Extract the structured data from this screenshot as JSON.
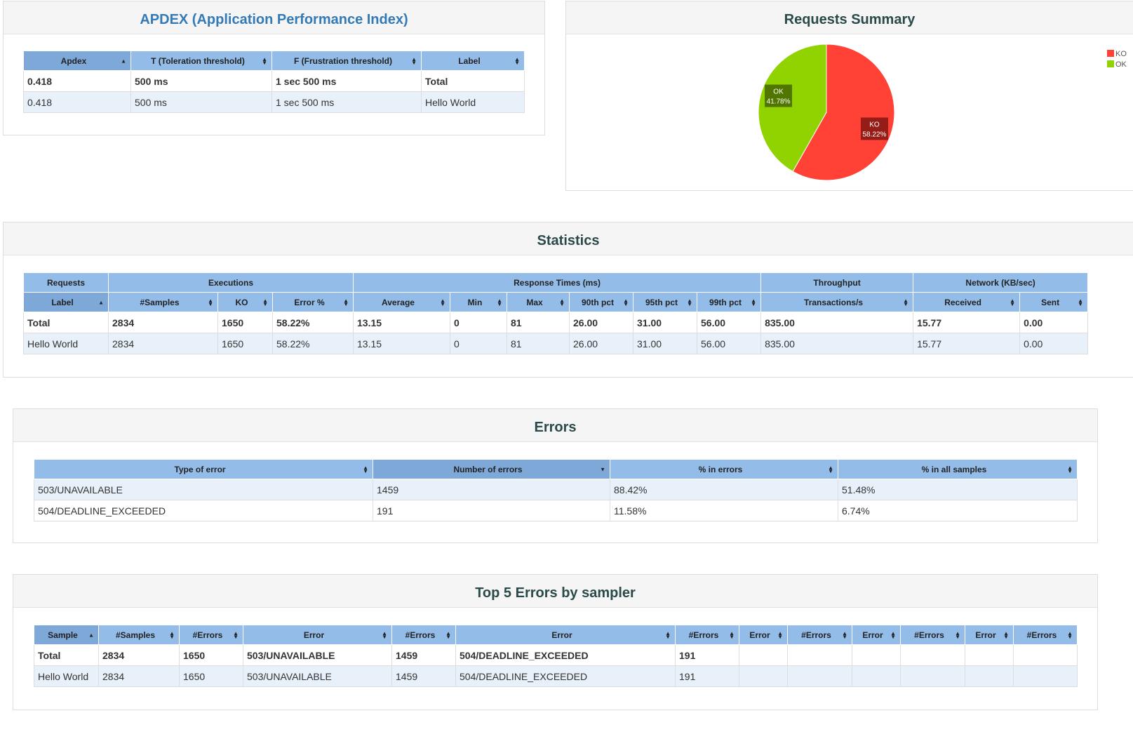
{
  "apdex": {
    "title": "APDEX (Application Performance Index)",
    "headers": [
      "Apdex",
      "T (Toleration threshold)",
      "F (Frustration threshold)",
      "Label"
    ],
    "total": [
      "0.418",
      "500 ms",
      "1 sec 500 ms",
      "Total"
    ],
    "rows": [
      [
        "0.418",
        "500 ms",
        "1 sec 500 ms",
        "Hello World"
      ]
    ]
  },
  "summary": {
    "title": "Requests Summary",
    "legend": [
      "KO",
      "OK"
    ]
  },
  "chart_data": {
    "type": "pie",
    "slices": [
      {
        "label": "KO",
        "value": 58.22,
        "text": "58.22%",
        "color": "#ff4136"
      },
      {
        "label": "OK",
        "value": 41.78,
        "text": "41.78%",
        "color": "#91d300"
      }
    ]
  },
  "statistics": {
    "title": "Statistics",
    "groups": [
      "Requests",
      "Executions",
      "Response Times (ms)",
      "Throughput",
      "Network (KB/sec)"
    ],
    "headers": [
      "Label",
      "#Samples",
      "KO",
      "Error %",
      "Average",
      "Min",
      "Max",
      "90th pct",
      "95th pct",
      "99th pct",
      "Transactions/s",
      "Received",
      "Sent"
    ],
    "total": [
      "Total",
      "2834",
      "1650",
      "58.22%",
      "13.15",
      "0",
      "81",
      "26.00",
      "31.00",
      "56.00",
      "835.00",
      "15.77",
      "0.00"
    ],
    "rows": [
      [
        "Hello World",
        "2834",
        "1650",
        "58.22%",
        "13.15",
        "0",
        "81",
        "26.00",
        "31.00",
        "56.00",
        "835.00",
        "15.77",
        "0.00"
      ]
    ]
  },
  "errors": {
    "title": "Errors",
    "headers": [
      "Type of error",
      "Number of errors",
      "% in errors",
      "% in all samples"
    ],
    "rows": [
      [
        "503/UNAVAILABLE",
        "1459",
        "88.42%",
        "51.48%"
      ],
      [
        "504/DEADLINE_EXCEEDED",
        "191",
        "11.58%",
        "6.74%"
      ]
    ]
  },
  "top5": {
    "title": "Top 5 Errors by sampler",
    "headers": [
      "Sample",
      "#Samples",
      "#Errors",
      "Error",
      "#Errors",
      "Error",
      "#Errors",
      "Error",
      "#Errors",
      "Error",
      "#Errors",
      "Error",
      "#Errors"
    ],
    "total": [
      "Total",
      "2834",
      "1650",
      "503/UNAVAILABLE",
      "1459",
      "504/DEADLINE_EXCEEDED",
      "191",
      "",
      "",
      "",
      "",
      "",
      ""
    ],
    "rows": [
      [
        "Hello World",
        "2834",
        "1650",
        "503/UNAVAILABLE",
        "1459",
        "504/DEADLINE_EXCEEDED",
        "191",
        "",
        "",
        "",
        "",
        "",
        ""
      ]
    ]
  }
}
